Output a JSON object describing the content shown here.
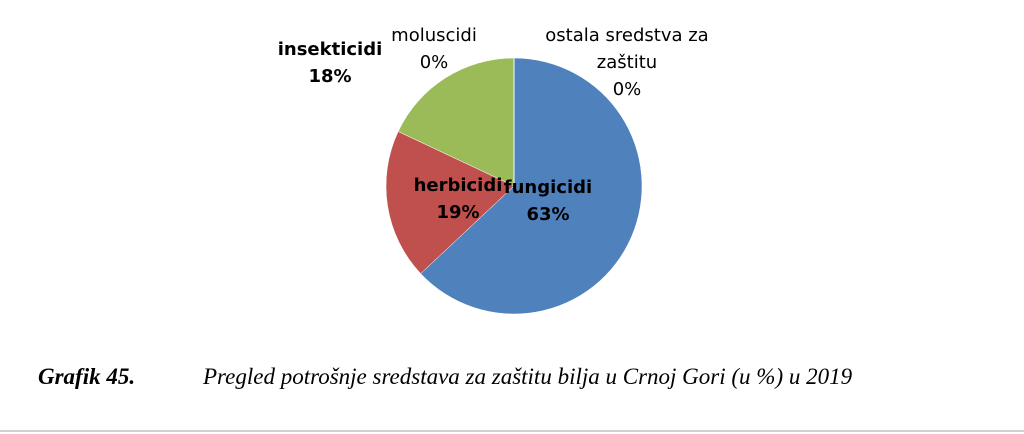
{
  "chart_data": {
    "type": "pie",
    "caption_label": "Grafik 45.",
    "title": "Pregled potrošnje sredstava za zaštitu bilja u Crnoj Gori (u %) u 2019",
    "categories": [
      "fungicidi",
      "herbicidi",
      "insekticidi",
      "moluscidi",
      "ostala sredstva za zaštitu"
    ],
    "values": [
      63,
      19,
      18,
      0,
      0
    ],
    "value_labels": [
      "63%",
      "19%",
      "18%",
      "0%",
      "0%"
    ],
    "colors": [
      "#4f81bd",
      "#c0504d",
      "#9bbb59",
      "#8064a2",
      "#4bacc6"
    ]
  }
}
